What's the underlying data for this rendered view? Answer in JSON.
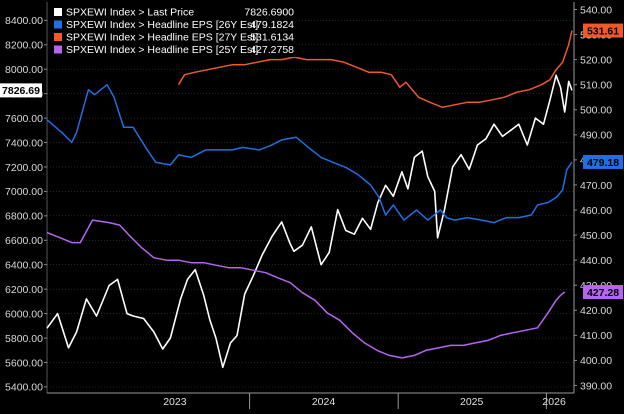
{
  "chart_data": {
    "type": "line",
    "y_left": {
      "range": [
        5350,
        8550
      ],
      "ticks": [
        "5400.00",
        "5600.00",
        "5800.00",
        "6000.00",
        "6200.00",
        "6400.00",
        "6600.00",
        "6800.00",
        "7000.00",
        "7200.00",
        "7400.00",
        "7600.00",
        "7800.00",
        "8000.00",
        "8200.00",
        "8400.00"
      ]
    },
    "y_right": {
      "range": [
        387,
        543
      ],
      "ticks": [
        "390.00",
        "400.00",
        "410.00",
        "420.00",
        "430.00",
        "440.00",
        "450.00",
        "460.00",
        "470.00",
        "480.00",
        "490.00",
        "500.00",
        "510.00",
        "520.00",
        "530.00",
        "540.00"
      ]
    },
    "x": {
      "range": [
        "2022-08-20",
        "2026-03-10"
      ],
      "year_labels": [
        "2023",
        "2024",
        "2025",
        "2026"
      ],
      "year_label_dates": [
        "2023-07-01",
        "2024-07-01",
        "2025-07-01",
        "2026-01-20"
      ],
      "year_dividers": [
        "2024-01-01",
        "2025-01-01",
        "2026-01-01"
      ]
    },
    "legend_placement": "top-left",
    "legend": [
      {
        "label": "SPXEWI Index > Last Price",
        "value": "7826.6900",
        "color": "#ffffff"
      },
      {
        "label": "SPXEWI Index > Headline EPS [26Y Est]",
        "value": "479.1824",
        "color": "#1f6fe5"
      },
      {
        "label": "SPXEWI Index > Headline EPS [27Y Est]",
        "value": "531.6134",
        "color": "#f0592a"
      },
      {
        "label": "SPXEWI Index > Headline EPS [25Y Est]",
        "value": "427.2758",
        "color": "#b565f0"
      }
    ],
    "series": [
      {
        "name": "SPXEWI Index > Last Price",
        "axis": "left",
        "color": "#ffffff",
        "tag": "7826.69",
        "x": [
          "2022-08-20",
          "2022-09-15",
          "2022-10-12",
          "2022-11-01",
          "2022-11-25",
          "2022-12-20",
          "2023-01-20",
          "2023-02-10",
          "2023-03-05",
          "2023-03-20",
          "2023-04-15",
          "2023-05-10",
          "2023-06-01",
          "2023-06-20",
          "2023-07-15",
          "2023-08-01",
          "2023-08-20",
          "2023-09-10",
          "2023-09-25",
          "2023-10-10",
          "2023-10-27",
          "2023-11-15",
          "2023-12-01",
          "2023-12-20",
          "2024-01-10",
          "2024-02-01",
          "2024-02-25",
          "2024-03-20",
          "2024-04-10",
          "2024-04-19",
          "2024-05-10",
          "2024-06-01",
          "2024-06-25",
          "2024-07-15",
          "2024-08-05",
          "2024-08-25",
          "2024-09-15",
          "2024-10-05",
          "2024-10-25",
          "2024-11-12",
          "2024-12-01",
          "2024-12-20",
          "2025-01-10",
          "2025-01-25",
          "2025-02-10",
          "2025-03-01",
          "2025-03-15",
          "2025-04-01",
          "2025-04-08",
          "2025-04-25",
          "2025-05-15",
          "2025-06-05",
          "2025-06-25",
          "2025-07-15",
          "2025-08-05",
          "2025-08-25",
          "2025-09-15",
          "2025-10-05",
          "2025-10-25",
          "2025-11-15",
          "2025-12-05",
          "2025-12-25",
          "2026-01-10",
          "2026-01-25",
          "2026-02-05",
          "2026-02-15",
          "2026-02-25",
          "2026-03-05"
        ],
        "y": [
          5880,
          6000,
          5720,
          5850,
          6120,
          5980,
          6230,
          6280,
          6000,
          5980,
          5960,
          5850,
          5710,
          5800,
          6120,
          6280,
          6360,
          6150,
          5950,
          5800,
          5560,
          5760,
          5820,
          6160,
          6310,
          6480,
          6630,
          6750,
          6570,
          6510,
          6560,
          6710,
          6400,
          6500,
          6850,
          6680,
          6650,
          6780,
          6690,
          6910,
          7050,
          6960,
          7160,
          7020,
          7280,
          7330,
          7120,
          7000,
          6620,
          6850,
          7200,
          7300,
          7180,
          7380,
          7430,
          7550,
          7450,
          7500,
          7550,
          7380,
          7600,
          7550,
          7750,
          7950,
          7850,
          7650,
          7900,
          7826.69
        ]
      },
      {
        "name": "SPXEWI Index > Headline EPS [26Y Est]",
        "axis": "right",
        "color": "#1f6fe5",
        "tag": "479.18",
        "x": [
          "2022-08-20",
          "2022-09-25",
          "2022-10-20",
          "2022-11-01",
          "2022-11-30",
          "2022-12-15",
          "2023-01-15",
          "2023-02-01",
          "2023-02-25",
          "2023-03-20",
          "2023-04-20",
          "2023-05-15",
          "2023-06-20",
          "2023-07-10",
          "2023-08-10",
          "2023-09-15",
          "2023-10-15",
          "2023-11-20",
          "2023-12-15",
          "2024-01-25",
          "2024-02-25",
          "2024-03-20",
          "2024-04-25",
          "2024-05-25",
          "2024-06-25",
          "2024-07-25",
          "2024-08-25",
          "2024-09-25",
          "2024-10-25",
          "2024-11-15",
          "2024-12-01",
          "2024-12-20",
          "2025-01-15",
          "2025-02-15",
          "2025-03-15",
          "2025-04-15",
          "2025-04-30",
          "2025-05-20",
          "2025-06-20",
          "2025-07-25",
          "2025-08-25",
          "2025-09-25",
          "2025-10-25",
          "2025-11-25",
          "2025-12-10",
          "2026-01-05",
          "2026-01-25",
          "2026-02-10",
          "2026-02-20",
          "2026-03-05"
        ],
        "y": [
          496,
          491,
          487,
          491,
          508,
          506,
          510,
          505,
          493,
          493,
          485,
          479,
          478,
          482,
          481,
          484,
          484,
          484,
          485,
          484,
          486,
          488,
          489,
          485,
          481,
          479,
          477,
          474,
          470,
          465,
          458,
          462,
          456,
          460,
          456,
          460,
          457,
          456,
          457,
          456,
          455,
          457,
          457,
          458,
          462,
          463,
          465,
          468,
          476,
          479.18
        ]
      },
      {
        "name": "SPXEWI Index > Headline EPS [27Y Est]",
        "axis": "right",
        "color": "#f0592a",
        "tag": "531.61",
        "x": [
          "2023-07-10",
          "2023-07-25",
          "2023-08-20",
          "2023-09-20",
          "2023-10-20",
          "2023-11-20",
          "2023-12-20",
          "2024-01-20",
          "2024-02-20",
          "2024-03-20",
          "2024-04-20",
          "2024-05-20",
          "2024-06-20",
          "2024-07-20",
          "2024-08-20",
          "2024-09-20",
          "2024-10-20",
          "2024-11-20",
          "2024-12-15",
          "2025-01-05",
          "2025-01-20",
          "2025-02-20",
          "2025-03-20",
          "2025-04-20",
          "2025-05-20",
          "2025-06-20",
          "2025-07-20",
          "2025-08-20",
          "2025-09-20",
          "2025-10-20",
          "2025-11-20",
          "2025-12-20",
          "2026-01-10",
          "2026-01-25",
          "2026-02-10",
          "2026-02-25",
          "2026-03-05"
        ],
        "y": [
          510,
          514,
          515,
          516,
          517,
          518,
          518,
          519,
          520,
          520,
          521,
          520,
          520,
          520,
          519,
          517,
          515,
          515,
          514,
          509,
          511,
          505,
          503,
          501,
          502,
          503,
          503,
          504,
          505,
          507,
          508,
          510,
          512,
          516,
          519,
          526,
          531.61
        ]
      },
      {
        "name": "SPXEWI Index > Headline EPS [25Y Est]",
        "axis": "right",
        "color": "#b565f0",
        "tag": "427.28",
        "x": [
          "2022-08-20",
          "2022-09-20",
          "2022-10-20",
          "2022-11-10",
          "2022-12-10",
          "2023-01-20",
          "2023-02-15",
          "2023-03-10",
          "2023-04-10",
          "2023-05-10",
          "2023-06-10",
          "2023-07-10",
          "2023-08-10",
          "2023-09-10",
          "2023-10-10",
          "2023-11-10",
          "2023-12-10",
          "2024-01-10",
          "2024-02-10",
          "2024-03-10",
          "2024-04-10",
          "2024-05-10",
          "2024-06-10",
          "2024-07-10",
          "2024-08-10",
          "2024-09-10",
          "2024-10-10",
          "2024-11-10",
          "2024-12-10",
          "2025-01-10",
          "2025-02-10",
          "2025-03-10",
          "2025-04-10",
          "2025-05-10",
          "2025-06-10",
          "2025-07-10",
          "2025-08-10",
          "2025-09-10",
          "2025-10-10",
          "2025-11-10",
          "2025-12-10",
          "2026-01-05",
          "2026-01-25",
          "2026-02-05",
          "2026-02-15"
        ],
        "y": [
          451,
          449,
          447,
          447,
          456,
          455,
          454,
          450,
          445,
          441,
          440,
          440,
          439,
          439,
          438,
          437,
          437,
          436,
          435,
          433,
          431,
          427,
          424,
          419,
          416,
          411,
          407,
          404,
          402,
          401,
          402,
          404,
          405,
          406,
          406,
          407,
          408,
          410,
          411,
          412,
          413,
          419,
          424,
          426,
          427.28
        ]
      }
    ]
  }
}
